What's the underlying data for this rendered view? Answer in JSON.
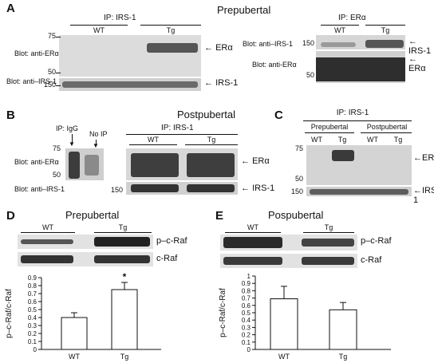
{
  "panelA": {
    "label": "A",
    "title": "Prepubertal",
    "left": {
      "ip": "IP: IRS-1",
      "groups": [
        "WT",
        "Tg"
      ],
      "row1_label": "Blot: anti-ERα",
      "row2_label": "Blot: anti–IRS-1",
      "row1_band": "ERα",
      "row2_band": "IRS-1",
      "mw_top": [
        "75",
        "50"
      ],
      "mw_bottom": "150"
    },
    "right": {
      "ip": "IP: ERα",
      "groups": [
        "WT",
        "Tg"
      ],
      "row1_label": "Blot: anti–IRS-1",
      "row2_label": "Blot: anti-ERα",
      "row1_band": "IRS-1",
      "row2_band": "ERα",
      "mw_top": "150",
      "mw_bottom": "50"
    }
  },
  "panelB": {
    "label": "B",
    "title": "Postpubertal",
    "ip_igg": "IP: IgG",
    "no_ip": "No IP",
    "ip": "IP: IRS-1",
    "groups": [
      "WT",
      "Tg"
    ],
    "row1_label": "Blot: anti-ERα",
    "row2_label": "Blot: anti–IRS-1",
    "row1_band": "ERα",
    "row2_band": "IRS-1",
    "mw_top": [
      "75",
      "50"
    ],
    "mw_bottom": "150"
  },
  "panelC": {
    "label": "C",
    "ip": "IP: IRS-1",
    "stages": [
      "Prepubertal",
      "Postpubertal"
    ],
    "lanes": [
      "WT",
      "Tg",
      "WT",
      "Tg"
    ],
    "row1_band": "ERα",
    "row2_band": "IRS-1",
    "mw_top": [
      "75",
      "50"
    ],
    "mw_bottom": "150"
  },
  "panelD": {
    "label": "D",
    "title": "Prepubertal",
    "groups": [
      "WT",
      "Tg"
    ],
    "row1_band": "p–c-Raf",
    "row2_band": "c-Raf",
    "chart_data": {
      "type": "bar",
      "categories": [
        "WT",
        "Tg"
      ],
      "values": [
        0.4,
        0.75
      ],
      "errors": [
        0.06,
        0.09
      ],
      "ylabel": "p–c-Raf/c-Raf",
      "ylim": [
        0,
        0.9
      ],
      "yticks": [
        "0",
        "0.1",
        "0.2",
        "0.3",
        "0.4",
        "0.5",
        "0.6",
        "0.7",
        "0.8",
        "0.9"
      ],
      "annotation": "*"
    }
  },
  "panelE": {
    "label": "E",
    "title": "Pospubertal",
    "groups": [
      "WT",
      "Tg"
    ],
    "row1_band": "p–c-Raf",
    "row2_band": "c-Raf",
    "chart_data": {
      "type": "bar",
      "categories": [
        "WT",
        "Tg"
      ],
      "values": [
        0.69,
        0.54
      ],
      "errors": [
        0.17,
        0.1
      ],
      "ylabel": "p–c-Raf/c-Raf",
      "ylim": [
        0,
        1
      ],
      "yticks": [
        "0",
        "0.1",
        "0.2",
        "0.3",
        "0.4",
        "0.5",
        "0.6",
        "0.7",
        "0.8",
        "0.9",
        "1"
      ]
    }
  }
}
